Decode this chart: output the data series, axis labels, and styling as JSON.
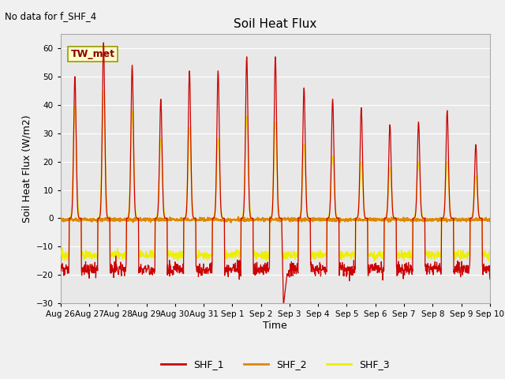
{
  "title": "Soil Heat Flux",
  "ylabel": "Soil Heat Flux (W/m2)",
  "xlabel": "Time",
  "annotation_top_left": "No data for f_SHF_4",
  "legend_label_annotation": "TW_met",
  "ylim": [
    -30,
    65
  ],
  "yticks": [
    -30,
    -20,
    -10,
    0,
    10,
    20,
    30,
    40,
    50,
    60
  ],
  "fig_bg_color": "#f0f0f0",
  "plot_bg_color": "#e8e8e8",
  "grid_color": "#ffffff",
  "shf1_color": "#cc0000",
  "shf2_color": "#dd8800",
  "shf3_color": "#eeee00",
  "zero_line_color": "#dd8800",
  "x_tick_labels": [
    "Aug 26",
    "Aug 27",
    "Aug 28",
    "Aug 29",
    "Aug 30",
    "Aug 31",
    "Sep 1",
    "Sep 2",
    "Sep 3",
    "Sep 4",
    "Sep 5",
    "Sep 6",
    "Sep 7",
    "Sep 8",
    "Sep 9",
    "Sep 10"
  ],
  "num_days": 15,
  "points_per_day": 96
}
